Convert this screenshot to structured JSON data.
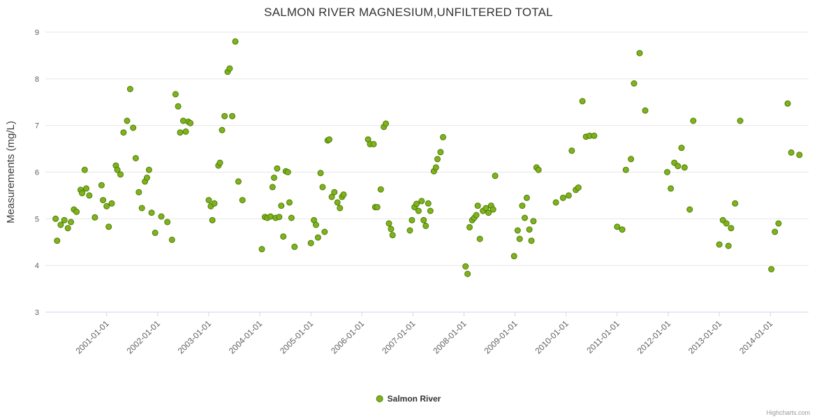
{
  "credits": "Highcharts.com",
  "colors": {
    "point_fill": "#7db41c",
    "point_stroke": "#527a08",
    "grid": "#e6e6e6",
    "axis_line": "#ccd6eb"
  },
  "chart_data": {
    "type": "scatter",
    "title": "SALMON RIVER MAGNESIUM,UNFILTERED TOTAL",
    "xlabel": "",
    "ylabel": "Measurements (mg/L)",
    "ylim": [
      3,
      9
    ],
    "xlim": [
      1999.8,
      2014.75
    ],
    "y_ticks": [
      3,
      4,
      5,
      6,
      7,
      8,
      9
    ],
    "x_ticks": [
      2001,
      2002,
      2003,
      2004,
      2005,
      2006,
      2007,
      2008,
      2009,
      2010,
      2011,
      2012,
      2013,
      2014
    ],
    "x_tick_labels": [
      "2001-01-01",
      "2002-01-01",
      "2003-01-01",
      "2004-01-01",
      "2005-01-01",
      "2006-01-01",
      "2007-01-01",
      "2008-01-01",
      "2009-01-01",
      "2010-01-01",
      "2011-01-01",
      "2012-01-01",
      "2013-01-01",
      "2014-01-01"
    ],
    "grid": "horizontal-only",
    "legend_position": "bottom-center",
    "series": [
      {
        "name": "Salmon River",
        "points": [
          [
            2000.0,
            5.0
          ],
          [
            2000.03,
            4.53
          ],
          [
            2000.1,
            4.87
          ],
          [
            2000.17,
            4.97
          ],
          [
            2000.24,
            4.8
          ],
          [
            2000.3,
            4.93
          ],
          [
            2000.36,
            5.2
          ],
          [
            2000.41,
            5.15
          ],
          [
            2000.49,
            5.62
          ],
          [
            2000.52,
            5.55
          ],
          [
            2000.57,
            6.05
          ],
          [
            2000.6,
            5.65
          ],
          [
            2000.66,
            5.5
          ],
          [
            2000.77,
            5.03
          ],
          [
            2000.9,
            5.72
          ],
          [
            2000.93,
            5.4
          ],
          [
            2001.0,
            5.27
          ],
          [
            2001.04,
            4.83
          ],
          [
            2001.1,
            5.33
          ],
          [
            2001.18,
            6.14
          ],
          [
            2001.21,
            6.05
          ],
          [
            2001.27,
            5.95
          ],
          [
            2001.33,
            6.85
          ],
          [
            2001.4,
            7.1
          ],
          [
            2001.46,
            7.78
          ],
          [
            2001.52,
            6.95
          ],
          [
            2001.57,
            6.3
          ],
          [
            2001.63,
            5.57
          ],
          [
            2001.69,
            5.23
          ],
          [
            2001.75,
            5.8
          ],
          [
            2001.79,
            5.88
          ],
          [
            2001.83,
            6.05
          ],
          [
            2001.88,
            5.13
          ],
          [
            2001.95,
            4.7
          ],
          [
            2002.07,
            5.05
          ],
          [
            2002.19,
            4.93
          ],
          [
            2002.28,
            4.55
          ],
          [
            2002.35,
            7.67
          ],
          [
            2002.4,
            7.41
          ],
          [
            2002.44,
            6.85
          ],
          [
            2002.5,
            7.1
          ],
          [
            2002.55,
            6.87
          ],
          [
            2002.6,
            7.08
          ],
          [
            2002.64,
            7.05
          ],
          [
            2003.0,
            5.4
          ],
          [
            2003.04,
            5.27
          ],
          [
            2003.07,
            4.97
          ],
          [
            2003.11,
            5.33
          ],
          [
            2003.19,
            6.14
          ],
          [
            2003.22,
            6.2
          ],
          [
            2003.26,
            6.9
          ],
          [
            2003.31,
            7.2
          ],
          [
            2003.37,
            8.15
          ],
          [
            2003.41,
            8.22
          ],
          [
            2003.46,
            7.2
          ],
          [
            2003.52,
            8.8
          ],
          [
            2003.58,
            5.8
          ],
          [
            2003.66,
            5.4
          ],
          [
            2004.04,
            4.35
          ],
          [
            2004.1,
            5.04
          ],
          [
            2004.15,
            5.02
          ],
          [
            2004.21,
            5.05
          ],
          [
            2004.25,
            5.68
          ],
          [
            2004.28,
            5.88
          ],
          [
            2004.31,
            5.02
          ],
          [
            2004.34,
            6.08
          ],
          [
            2004.38,
            5.04
          ],
          [
            2004.42,
            5.28
          ],
          [
            2004.46,
            4.62
          ],
          [
            2004.51,
            6.02
          ],
          [
            2004.55,
            6.0
          ],
          [
            2004.58,
            5.35
          ],
          [
            2004.62,
            5.02
          ],
          [
            2004.68,
            4.4
          ],
          [
            2005.0,
            4.48
          ],
          [
            2005.06,
            4.97
          ],
          [
            2005.1,
            4.87
          ],
          [
            2005.14,
            4.6
          ],
          [
            2005.19,
            5.98
          ],
          [
            2005.23,
            5.68
          ],
          [
            2005.27,
            4.72
          ],
          [
            2005.33,
            6.68
          ],
          [
            2005.36,
            6.7
          ],
          [
            2005.41,
            5.47
          ],
          [
            2005.46,
            5.57
          ],
          [
            2005.52,
            5.35
          ],
          [
            2005.57,
            5.23
          ],
          [
            2005.61,
            5.47
          ],
          [
            2005.64,
            5.52
          ],
          [
            2006.12,
            6.7
          ],
          [
            2006.16,
            6.6
          ],
          [
            2006.23,
            6.6
          ],
          [
            2006.26,
            5.25
          ],
          [
            2006.3,
            5.25
          ],
          [
            2006.37,
            5.63
          ],
          [
            2006.43,
            6.97
          ],
          [
            2006.47,
            7.04
          ],
          [
            2006.53,
            4.9
          ],
          [
            2006.57,
            4.78
          ],
          [
            2006.6,
            4.65
          ],
          [
            2006.94,
            4.75
          ],
          [
            2006.98,
            4.97
          ],
          [
            2007.03,
            5.25
          ],
          [
            2007.07,
            5.32
          ],
          [
            2007.11,
            5.17
          ],
          [
            2007.17,
            5.38
          ],
          [
            2007.21,
            4.97
          ],
          [
            2007.25,
            4.85
          ],
          [
            2007.3,
            5.33
          ],
          [
            2007.34,
            5.17
          ],
          [
            2007.41,
            6.02
          ],
          [
            2007.45,
            6.1
          ],
          [
            2007.48,
            6.28
          ],
          [
            2007.54,
            6.43
          ],
          [
            2007.59,
            6.75
          ],
          [
            2008.03,
            3.98
          ],
          [
            2008.07,
            3.82
          ],
          [
            2008.11,
            4.82
          ],
          [
            2008.16,
            4.97
          ],
          [
            2008.2,
            5.02
          ],
          [
            2008.24,
            5.08
          ],
          [
            2008.27,
            5.28
          ],
          [
            2008.31,
            4.57
          ],
          [
            2008.37,
            5.17
          ],
          [
            2008.43,
            5.23
          ],
          [
            2008.48,
            5.13
          ],
          [
            2008.53,
            5.28
          ],
          [
            2008.57,
            5.2
          ],
          [
            2008.61,
            5.92
          ],
          [
            2008.98,
            4.2
          ],
          [
            2009.05,
            4.75
          ],
          [
            2009.09,
            4.57
          ],
          [
            2009.14,
            5.28
          ],
          [
            2009.19,
            5.02
          ],
          [
            2009.23,
            5.45
          ],
          [
            2009.28,
            4.77
          ],
          [
            2009.32,
            4.53
          ],
          [
            2009.36,
            4.95
          ],
          [
            2009.42,
            6.1
          ],
          [
            2009.46,
            6.05
          ],
          [
            2009.8,
            5.35
          ],
          [
            2009.94,
            5.45
          ],
          [
            2010.05,
            5.5
          ],
          [
            2010.11,
            6.46
          ],
          [
            2010.19,
            5.62
          ],
          [
            2010.24,
            5.67
          ],
          [
            2010.32,
            7.52
          ],
          [
            2010.39,
            6.76
          ],
          [
            2010.46,
            6.78
          ],
          [
            2010.55,
            6.78
          ],
          [
            2011.0,
            4.83
          ],
          [
            2011.1,
            4.77
          ],
          [
            2011.17,
            6.05
          ],
          [
            2011.27,
            6.28
          ],
          [
            2011.33,
            7.9
          ],
          [
            2011.44,
            8.55
          ],
          [
            2011.55,
            7.32
          ],
          [
            2011.98,
            6.0
          ],
          [
            2012.05,
            5.65
          ],
          [
            2012.12,
            6.2
          ],
          [
            2012.19,
            6.13
          ],
          [
            2012.26,
            6.52
          ],
          [
            2012.32,
            6.1
          ],
          [
            2012.42,
            5.2
          ],
          [
            2012.49,
            7.1
          ],
          [
            2013.0,
            4.45
          ],
          [
            2013.07,
            4.97
          ],
          [
            2013.14,
            4.9
          ],
          [
            2013.18,
            4.42
          ],
          [
            2013.23,
            4.8
          ],
          [
            2013.31,
            5.33
          ],
          [
            2013.41,
            7.1
          ],
          [
            2014.02,
            3.92
          ],
          [
            2014.09,
            4.72
          ],
          [
            2014.16,
            4.9
          ],
          [
            2014.34,
            7.47
          ],
          [
            2014.41,
            6.42
          ],
          [
            2014.57,
            6.37
          ]
        ]
      }
    ]
  }
}
